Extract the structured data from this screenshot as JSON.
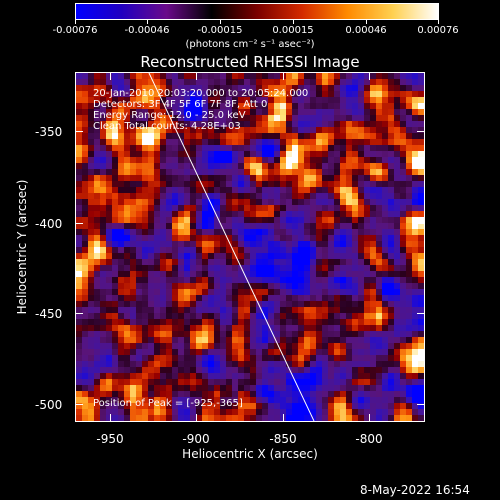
{
  "colorbar": {
    "tick_labels": [
      "-0.00076",
      "-0.00046",
      "-0.00015",
      "0.00015",
      "0.00046",
      "0.00076"
    ],
    "units_label": "(photons cm⁻² s⁻¹ asec⁻²)",
    "colormap": [
      "#0000ff",
      "#2000c0",
      "#6a0a8a",
      "#000000",
      "#7a0000",
      "#d42a00",
      "#ff8a00",
      "#ffd050",
      "#ffffff"
    ]
  },
  "title": "Reconstructed RHESSI Image",
  "info_lines": [
    "20-Jan-2010 20:03:20.000 to 20:05:24.000",
    "Detectors: 3F 4F 5F 6F 7F 8F, Att 0",
    "Energy Range: 12.0 - 25.0 keV",
    "Clean     Total counts: 4.28E+03"
  ],
  "peak_label": "Position of Peak = [-925,-365]",
  "x_axis": {
    "label": "Heliocentric X (arcsec)",
    "ticks": [
      "-950",
      "-900",
      "-850",
      "-800"
    ],
    "range": [
      -965,
      -820
    ]
  },
  "y_axis": {
    "label": "Heliocentric Y (arcsec)",
    "ticks": [
      "-350",
      "-400",
      "-450",
      "-500"
    ],
    "range": [
      -510,
      -325
    ]
  },
  "limb_line": {
    "visible": true
  },
  "datestamp": "8-May-2022 16:54"
}
